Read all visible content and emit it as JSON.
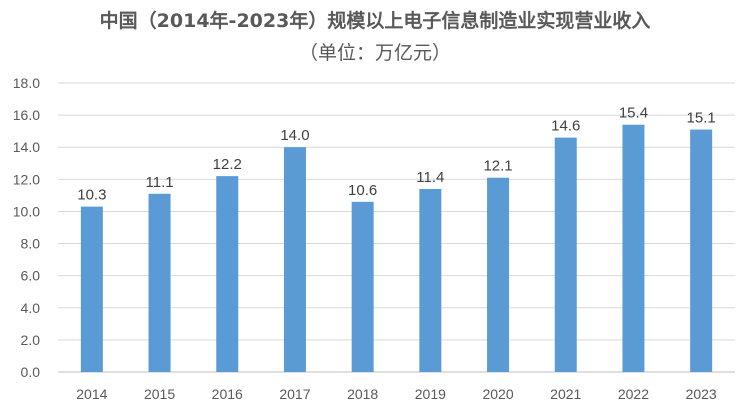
{
  "chart_data": {
    "type": "bar",
    "title": "中国（2014年-2023年）规模以上电子信息制造业实现营业收入",
    "subtitle": "（单位：万亿元）",
    "xlabel": "",
    "ylabel": "",
    "categories": [
      "2014",
      "2015",
      "2016",
      "2017",
      "2018",
      "2019",
      "2020",
      "2021",
      "2022",
      "2023"
    ],
    "values": [
      10.3,
      11.1,
      12.2,
      14.0,
      10.6,
      11.4,
      12.1,
      14.6,
      15.4,
      15.1
    ],
    "value_labels": [
      "10.3",
      "11.1",
      "12.2",
      "14.0",
      "10.6",
      "11.4",
      "12.1",
      "14.6",
      "15.4",
      "15.1"
    ],
    "ylim": [
      0,
      18
    ],
    "y_ticks": [
      "0.0",
      "2.0",
      "4.0",
      "6.0",
      "8.0",
      "10.0",
      "12.0",
      "14.0",
      "16.0",
      "18.0"
    ],
    "grid": true,
    "legend": "none",
    "bar_color": "#5B9BD5"
  }
}
